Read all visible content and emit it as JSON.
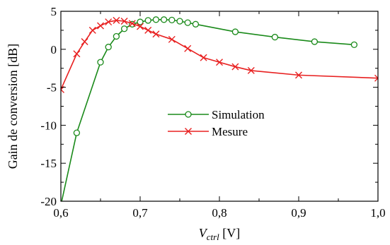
{
  "chart_data": {
    "type": "line",
    "xlabel_main": "V",
    "xlabel_sub": "ctrl",
    "xlabel_unit": " [V]",
    "ylabel": "Gain de conversion [dB]",
    "xlim": [
      0.6,
      1.0
    ],
    "ylim": [
      -20,
      5
    ],
    "x_ticks": [
      0.6,
      0.7,
      0.8,
      0.9,
      1.0
    ],
    "x_tick_labels": [
      "0,6",
      "0,7",
      "0,8",
      "0,9",
      "1,0"
    ],
    "y_ticks": [
      5,
      0,
      -5,
      -10,
      -15,
      -20
    ],
    "y_tick_labels": [
      "5",
      "0",
      "-5",
      "-10",
      "-15",
      "-20"
    ],
    "grid": false,
    "legend_position": "center-right",
    "series": [
      {
        "name": "Simulation",
        "color": "#1a8a1a",
        "marker": "circle",
        "x": [
          0.6,
          0.62,
          0.65,
          0.66,
          0.67,
          0.68,
          0.69,
          0.7,
          0.71,
          0.72,
          0.73,
          0.74,
          0.75,
          0.76,
          0.77,
          0.82,
          0.87,
          0.92,
          0.97
        ],
        "y": [
          -20.5,
          -11,
          -1.7,
          0.3,
          1.7,
          2.7,
          3.3,
          3.6,
          3.8,
          3.9,
          3.9,
          3.85,
          3.7,
          3.5,
          3.3,
          2.3,
          1.6,
          1.0,
          0.6
        ],
        "marker_x": [
          0.62,
          0.65,
          0.66,
          0.67,
          0.68,
          0.69,
          0.7,
          0.71,
          0.72,
          0.73,
          0.74,
          0.75,
          0.76,
          0.77,
          0.82,
          0.87,
          0.92,
          0.97
        ]
      },
      {
        "name": "Mesure",
        "color": "#e82020",
        "marker": "x",
        "x": [
          0.6,
          0.62,
          0.63,
          0.64,
          0.65,
          0.66,
          0.67,
          0.68,
          0.69,
          0.7,
          0.71,
          0.72,
          0.74,
          0.76,
          0.78,
          0.8,
          0.82,
          0.84,
          0.9,
          1.0
        ],
        "y": [
          -5.3,
          -0.6,
          1.0,
          2.5,
          3.1,
          3.6,
          3.8,
          3.7,
          3.4,
          3.0,
          2.5,
          2.0,
          1.3,
          0.1,
          -1.1,
          -1.7,
          -2.3,
          -2.8,
          -3.4,
          -3.8
        ]
      }
    ]
  }
}
